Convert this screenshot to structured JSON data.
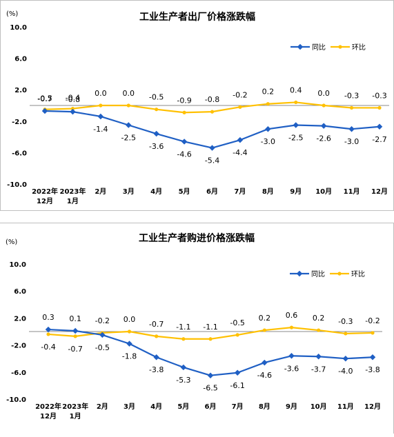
{
  "chart_data": [
    {
      "type": "line",
      "title": "工业生产者出厂价格涨跌幅",
      "unit_label": "(%)",
      "categories": [
        [
          "2022年",
          "12月"
        ],
        [
          "2023年",
          "1月"
        ],
        [
          "2月"
        ],
        [
          "3月"
        ],
        [
          "4月"
        ],
        [
          "5月"
        ],
        [
          "6月"
        ],
        [
          "7月"
        ],
        [
          "8月"
        ],
        [
          "9月"
        ],
        [
          "10月"
        ],
        [
          "11月"
        ],
        [
          "12月"
        ]
      ],
      "y_ticks": [
        "10.0",
        "6.0",
        "2.0",
        "-2.0",
        "-6.0",
        "-10.0"
      ],
      "ylim": [
        -10,
        10
      ],
      "legend_position": "top-right",
      "series": [
        {
          "name": "同比",
          "color": "#1f5fc4",
          "values": [
            -0.7,
            -0.8,
            -1.4,
            -2.5,
            -3.6,
            -4.6,
            -5.4,
            -4.4,
            -3.0,
            -2.5,
            -2.6,
            -3.0,
            -2.7
          ],
          "labels": [
            "-0.7",
            "-0.8",
            "-1.4",
            "-2.5",
            "-3.6",
            "-4.6",
            "-5.4",
            "-4.4",
            "-3.0",
            "-2.5",
            "-2.6",
            "-3.0",
            "-2.7"
          ]
        },
        {
          "name": "环比",
          "color": "#ffc000",
          "values": [
            -0.5,
            -0.4,
            0.0,
            0.0,
            -0.5,
            -0.9,
            -0.8,
            -0.2,
            0.2,
            0.4,
            0.0,
            -0.3,
            -0.3
          ],
          "labels": [
            "-0.5",
            "-0.4",
            "0.0",
            "0.0",
            "-0.5",
            "-0.9",
            "-0.8",
            "-0.2",
            "0.2",
            "0.4",
            "0.0",
            "-0.3",
            "-0.3"
          ]
        }
      ]
    },
    {
      "type": "line",
      "title": "工业生产者购进价格涨跌幅",
      "unit_label": "(%)",
      "categories": [
        [
          "2022年",
          "12月"
        ],
        [
          "2023年",
          "1月"
        ],
        [
          "2月"
        ],
        [
          "3月"
        ],
        [
          "4月"
        ],
        [
          "5月"
        ],
        [
          "6月"
        ],
        [
          "7月"
        ],
        [
          "8月"
        ],
        [
          "9月"
        ],
        [
          "10月"
        ],
        [
          "11月"
        ],
        [
          "12月"
        ]
      ],
      "y_ticks": [
        "10.0",
        "6.0",
        "2.0",
        "-2.0",
        "-6.0",
        "-10.0"
      ],
      "ylim": [
        -10,
        10
      ],
      "legend_position": "top-right",
      "series": [
        {
          "name": "同比",
          "color": "#1f5fc4",
          "values": [
            0.3,
            0.1,
            -0.5,
            -1.8,
            -3.8,
            -5.3,
            -6.5,
            -6.1,
            -4.6,
            -3.6,
            -3.7,
            -4.0,
            -3.8
          ],
          "labels": [
            "0.3",
            "0.1",
            "-0.5",
            "-1.8",
            "-3.8",
            "-5.3",
            "-6.5",
            "-6.1",
            "-4.6",
            "-3.6",
            "-3.7",
            "-4.0",
            "-3.8"
          ]
        },
        {
          "name": "环比",
          "color": "#ffc000",
          "values": [
            -0.4,
            -0.7,
            -0.2,
            0.0,
            -0.7,
            -1.1,
            -1.1,
            -0.5,
            0.2,
            0.6,
            0.2,
            -0.3,
            -0.2
          ],
          "labels": [
            "-0.4",
            "-0.7",
            "-0.2",
            "0.0",
            "-0.7",
            "-1.1",
            "-1.1",
            "-0.5",
            "0.2",
            "0.6",
            "0.2",
            "-0.3",
            "-0.2"
          ]
        }
      ]
    }
  ]
}
